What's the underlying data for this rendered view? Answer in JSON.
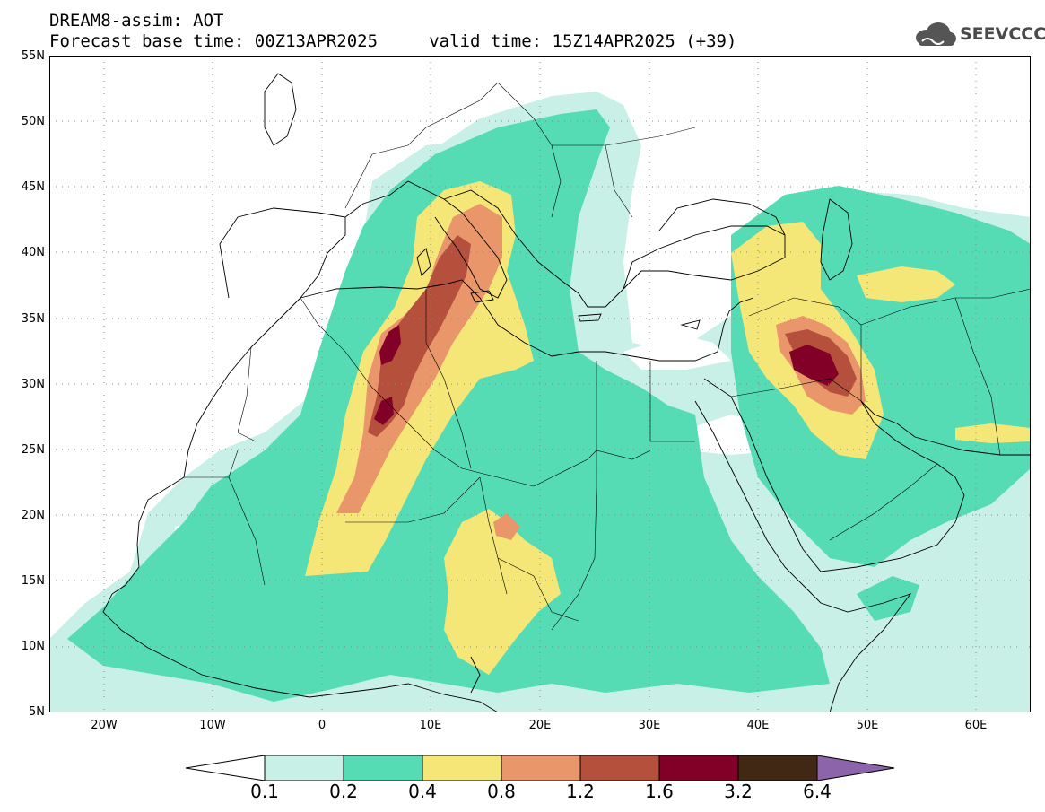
{
  "header": {
    "title": "DREAM8-assim: AOT",
    "subtitle": "Forecast base time: 00Z13APR2025     valid time: 15Z14APR2025 (+39)"
  },
  "logo": {
    "text": "SEEVCCC",
    "icon": "cloud-logo-icon"
  },
  "map": {
    "variable": "AOT",
    "lon_range": [
      -25,
      65
    ],
    "lat_range": [
      5,
      55
    ],
    "grid": true,
    "lat_ticks": [
      "5N",
      "10N",
      "15N",
      "20N",
      "25N",
      "30N",
      "35N",
      "40N",
      "45N",
      "50N",
      "55N"
    ],
    "lon_ticks": [
      "20W",
      "10W",
      "0",
      "10E",
      "20E",
      "30E",
      "40E",
      "50E",
      "60E"
    ],
    "features": [
      {
        "name": "plume-sahara",
        "lon": 6,
        "lat": 29,
        "peak_level": "1.6-3.2"
      },
      {
        "name": "plume-mesopotamia",
        "lon": 45,
        "lat": 31.5,
        "peak_level": "1.6-3.2"
      },
      {
        "name": "plume-chad",
        "lon": 17,
        "lat": 19.5,
        "peak_level": "0.8-1.2"
      }
    ]
  },
  "colorbar": {
    "labels": [
      "0.1",
      "0.2",
      "0.4",
      "0.8",
      "1.2",
      "1.6",
      "3.2",
      "6.4"
    ],
    "colors": [
      "#ffffff",
      "#c8f0e6",
      "#55dcb4",
      "#f5e678",
      "#e8966a",
      "#b4503c",
      "#820028",
      "#412814",
      "#8c64aa"
    ]
  }
}
